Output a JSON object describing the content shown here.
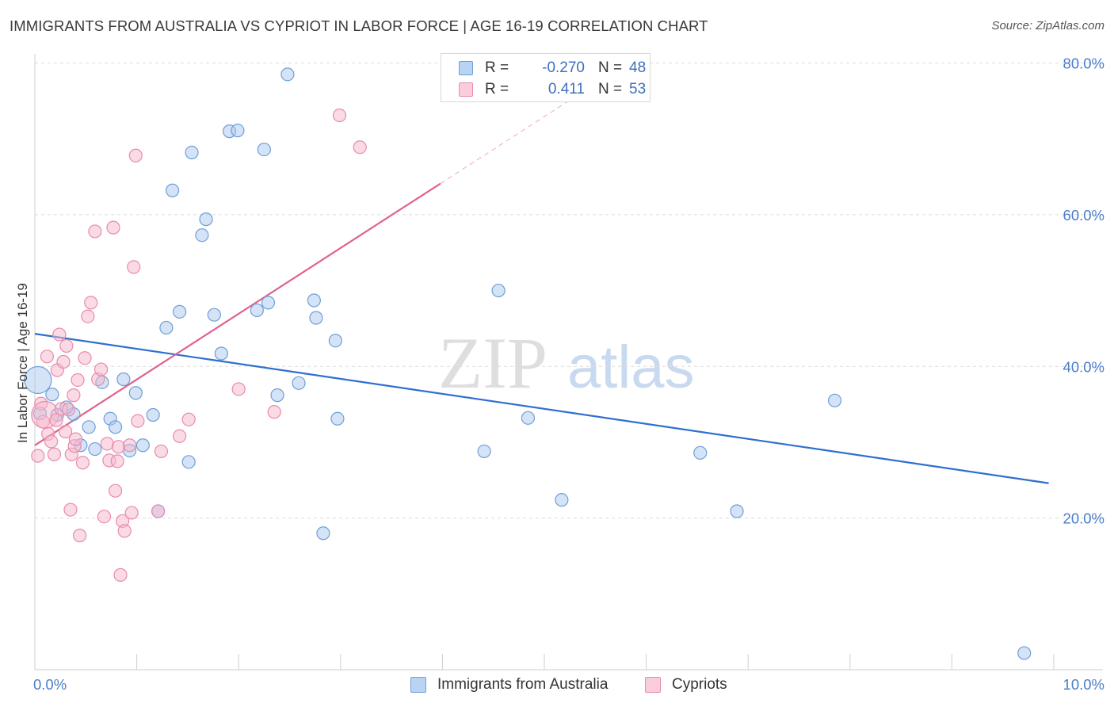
{
  "title": "IMMIGRANTS FROM AUSTRALIA VS CYPRIOT IN LABOR FORCE | AGE 16-19 CORRELATION CHART",
  "source": "Source: ZipAtlas.com",
  "watermark": {
    "zip": "ZIP",
    "atlas": "atlas"
  },
  "colors": {
    "blue_fill": "#aac8ee",
    "blue_stroke": "#6f9fd8",
    "blue_line": "#2f6fce",
    "pink_fill": "#f6b8cc",
    "pink_stroke": "#e98aab",
    "pink_line": "#e0628f",
    "tick_text": "#4a7cc9",
    "grid": "#dcdcdc"
  },
  "legend": {
    "rows": [
      {
        "r_label": "R =",
        "r_value": "-0.270",
        "n_label": "N =",
        "n_value": "48"
      },
      {
        "r_label": "R =",
        "r_value": "0.411",
        "n_label": "N =",
        "n_value": "53"
      }
    ],
    "bottom": [
      "Immigrants from Australia",
      "Cypriots"
    ]
  },
  "chart_data": {
    "type": "scatter",
    "title": "IMMIGRANTS FROM AUSTRALIA VS CYPRIOT IN LABOR FORCE | AGE 16-19 CORRELATION CHART",
    "xlabel": "",
    "ylabel": "In Labor Force | Age 16-19",
    "xlim": [
      0,
      10
    ],
    "ylim": [
      0,
      82
    ],
    "x_ticks": [
      {
        "value": 0,
        "label": "0.0%"
      },
      {
        "value": 10,
        "label": "10.0%"
      }
    ],
    "y_ticks": [
      {
        "value": 20,
        "label": "20.0%"
      },
      {
        "value": 40,
        "label": "40.0%"
      },
      {
        "value": 60,
        "label": "60.0%"
      },
      {
        "value": 80,
        "label": "80.0%"
      }
    ],
    "grid": true,
    "legend_position": "top-center",
    "series": [
      {
        "name": "Immigrants from Australia",
        "color": "#aac8ee",
        "trend": {
          "x": [
            0,
            9.95
          ],
          "y": [
            44.3,
            24.6
          ]
        },
        "points": [
          {
            "x": 0.03,
            "y": 38.2,
            "big": true
          },
          {
            "x": 0.17,
            "y": 36.3
          },
          {
            "x": 0.05,
            "y": 33.8
          },
          {
            "x": 0.22,
            "y": 33.6
          },
          {
            "x": 0.38,
            "y": 33.7
          },
          {
            "x": 0.31,
            "y": 34.6
          },
          {
            "x": 0.45,
            "y": 29.6
          },
          {
            "x": 0.53,
            "y": 32.0
          },
          {
            "x": 0.59,
            "y": 29.1
          },
          {
            "x": 0.66,
            "y": 37.9
          },
          {
            "x": 0.74,
            "y": 33.1
          },
          {
            "x": 0.79,
            "y": 32.0
          },
          {
            "x": 0.87,
            "y": 38.3
          },
          {
            "x": 0.93,
            "y": 28.9
          },
          {
            "x": 0.99,
            "y": 36.5
          },
          {
            "x": 1.06,
            "y": 29.6
          },
          {
            "x": 1.16,
            "y": 33.6
          },
          {
            "x": 1.21,
            "y": 20.9
          },
          {
            "x": 1.29,
            "y": 45.1
          },
          {
            "x": 1.35,
            "y": 63.2
          },
          {
            "x": 1.42,
            "y": 47.2
          },
          {
            "x": 1.51,
            "y": 27.4
          },
          {
            "x": 1.54,
            "y": 68.2
          },
          {
            "x": 1.64,
            "y": 57.3
          },
          {
            "x": 1.68,
            "y": 59.4
          },
          {
            "x": 1.76,
            "y": 46.8
          },
          {
            "x": 1.83,
            "y": 41.7
          },
          {
            "x": 1.91,
            "y": 71.0
          },
          {
            "x": 1.99,
            "y": 71.1
          },
          {
            "x": 2.18,
            "y": 47.4
          },
          {
            "x": 2.25,
            "y": 68.6
          },
          {
            "x": 2.29,
            "y": 48.4
          },
          {
            "x": 2.38,
            "y": 36.2
          },
          {
            "x": 2.48,
            "y": 78.5
          },
          {
            "x": 2.59,
            "y": 37.8
          },
          {
            "x": 2.74,
            "y": 48.7
          },
          {
            "x": 2.76,
            "y": 46.4
          },
          {
            "x": 2.83,
            "y": 18.0
          },
          {
            "x": 2.95,
            "y": 43.4
          },
          {
            "x": 2.97,
            "y": 33.1
          },
          {
            "x": 4.41,
            "y": 28.8
          },
          {
            "x": 4.55,
            "y": 50.0
          },
          {
            "x": 4.84,
            "y": 33.2
          },
          {
            "x": 5.17,
            "y": 22.4
          },
          {
            "x": 6.53,
            "y": 28.6
          },
          {
            "x": 6.89,
            "y": 20.9
          },
          {
            "x": 7.85,
            "y": 35.5
          },
          {
            "x": 9.71,
            "y": 2.2
          }
        ]
      },
      {
        "name": "Cypriots",
        "color": "#f6b8cc",
        "trend": {
          "x": [
            0,
            3.98
          ],
          "y": [
            29.6,
            64.1
          ]
        },
        "trend_extension": {
          "x": [
            3.98,
            5.4
          ],
          "y": [
            64.1,
            76.4
          ]
        },
        "points": [
          {
            "x": 0.03,
            "y": 28.2
          },
          {
            "x": 0.06,
            "y": 35.1
          },
          {
            "x": 0.08,
            "y": 32.7
          },
          {
            "x": 0.1,
            "y": 33.6,
            "big": true
          },
          {
            "x": 0.12,
            "y": 41.3
          },
          {
            "x": 0.13,
            "y": 31.1
          },
          {
            "x": 0.16,
            "y": 30.1
          },
          {
            "x": 0.19,
            "y": 28.4
          },
          {
            "x": 0.21,
            "y": 32.9
          },
          {
            "x": 0.22,
            "y": 39.5
          },
          {
            "x": 0.24,
            "y": 44.2
          },
          {
            "x": 0.26,
            "y": 34.4
          },
          {
            "x": 0.28,
            "y": 40.6
          },
          {
            "x": 0.3,
            "y": 31.4
          },
          {
            "x": 0.31,
            "y": 42.7
          },
          {
            "x": 0.33,
            "y": 34.3
          },
          {
            "x": 0.35,
            "y": 21.1
          },
          {
            "x": 0.36,
            "y": 28.4
          },
          {
            "x": 0.38,
            "y": 36.2
          },
          {
            "x": 0.39,
            "y": 29.5
          },
          {
            "x": 0.4,
            "y": 30.4
          },
          {
            "x": 0.42,
            "y": 38.2
          },
          {
            "x": 0.44,
            "y": 17.7
          },
          {
            "x": 0.47,
            "y": 27.3
          },
          {
            "x": 0.49,
            "y": 41.1
          },
          {
            "x": 0.52,
            "y": 46.6
          },
          {
            "x": 0.55,
            "y": 48.4
          },
          {
            "x": 0.59,
            "y": 57.8
          },
          {
            "x": 0.62,
            "y": 38.3
          },
          {
            "x": 0.65,
            "y": 39.6
          },
          {
            "x": 0.68,
            "y": 20.2
          },
          {
            "x": 0.71,
            "y": 29.8
          },
          {
            "x": 0.73,
            "y": 27.6
          },
          {
            "x": 0.77,
            "y": 58.3
          },
          {
            "x": 0.79,
            "y": 23.6
          },
          {
            "x": 0.81,
            "y": 27.5
          },
          {
            "x": 0.82,
            "y": 29.4
          },
          {
            "x": 0.84,
            "y": 12.5
          },
          {
            "x": 0.86,
            "y": 19.6
          },
          {
            "x": 0.88,
            "y": 18.3
          },
          {
            "x": 0.93,
            "y": 29.6
          },
          {
            "x": 0.95,
            "y": 20.7
          },
          {
            "x": 0.97,
            "y": 53.1
          },
          {
            "x": 0.99,
            "y": 67.8
          },
          {
            "x": 1.01,
            "y": 32.8
          },
          {
            "x": 1.21,
            "y": 20.9
          },
          {
            "x": 1.24,
            "y": 28.8
          },
          {
            "x": 1.42,
            "y": 30.8
          },
          {
            "x": 1.51,
            "y": 33.0
          },
          {
            "x": 2.0,
            "y": 37.0
          },
          {
            "x": 2.35,
            "y": 34.0
          },
          {
            "x": 2.99,
            "y": 73.1
          },
          {
            "x": 3.19,
            "y": 68.9
          }
        ]
      }
    ]
  }
}
